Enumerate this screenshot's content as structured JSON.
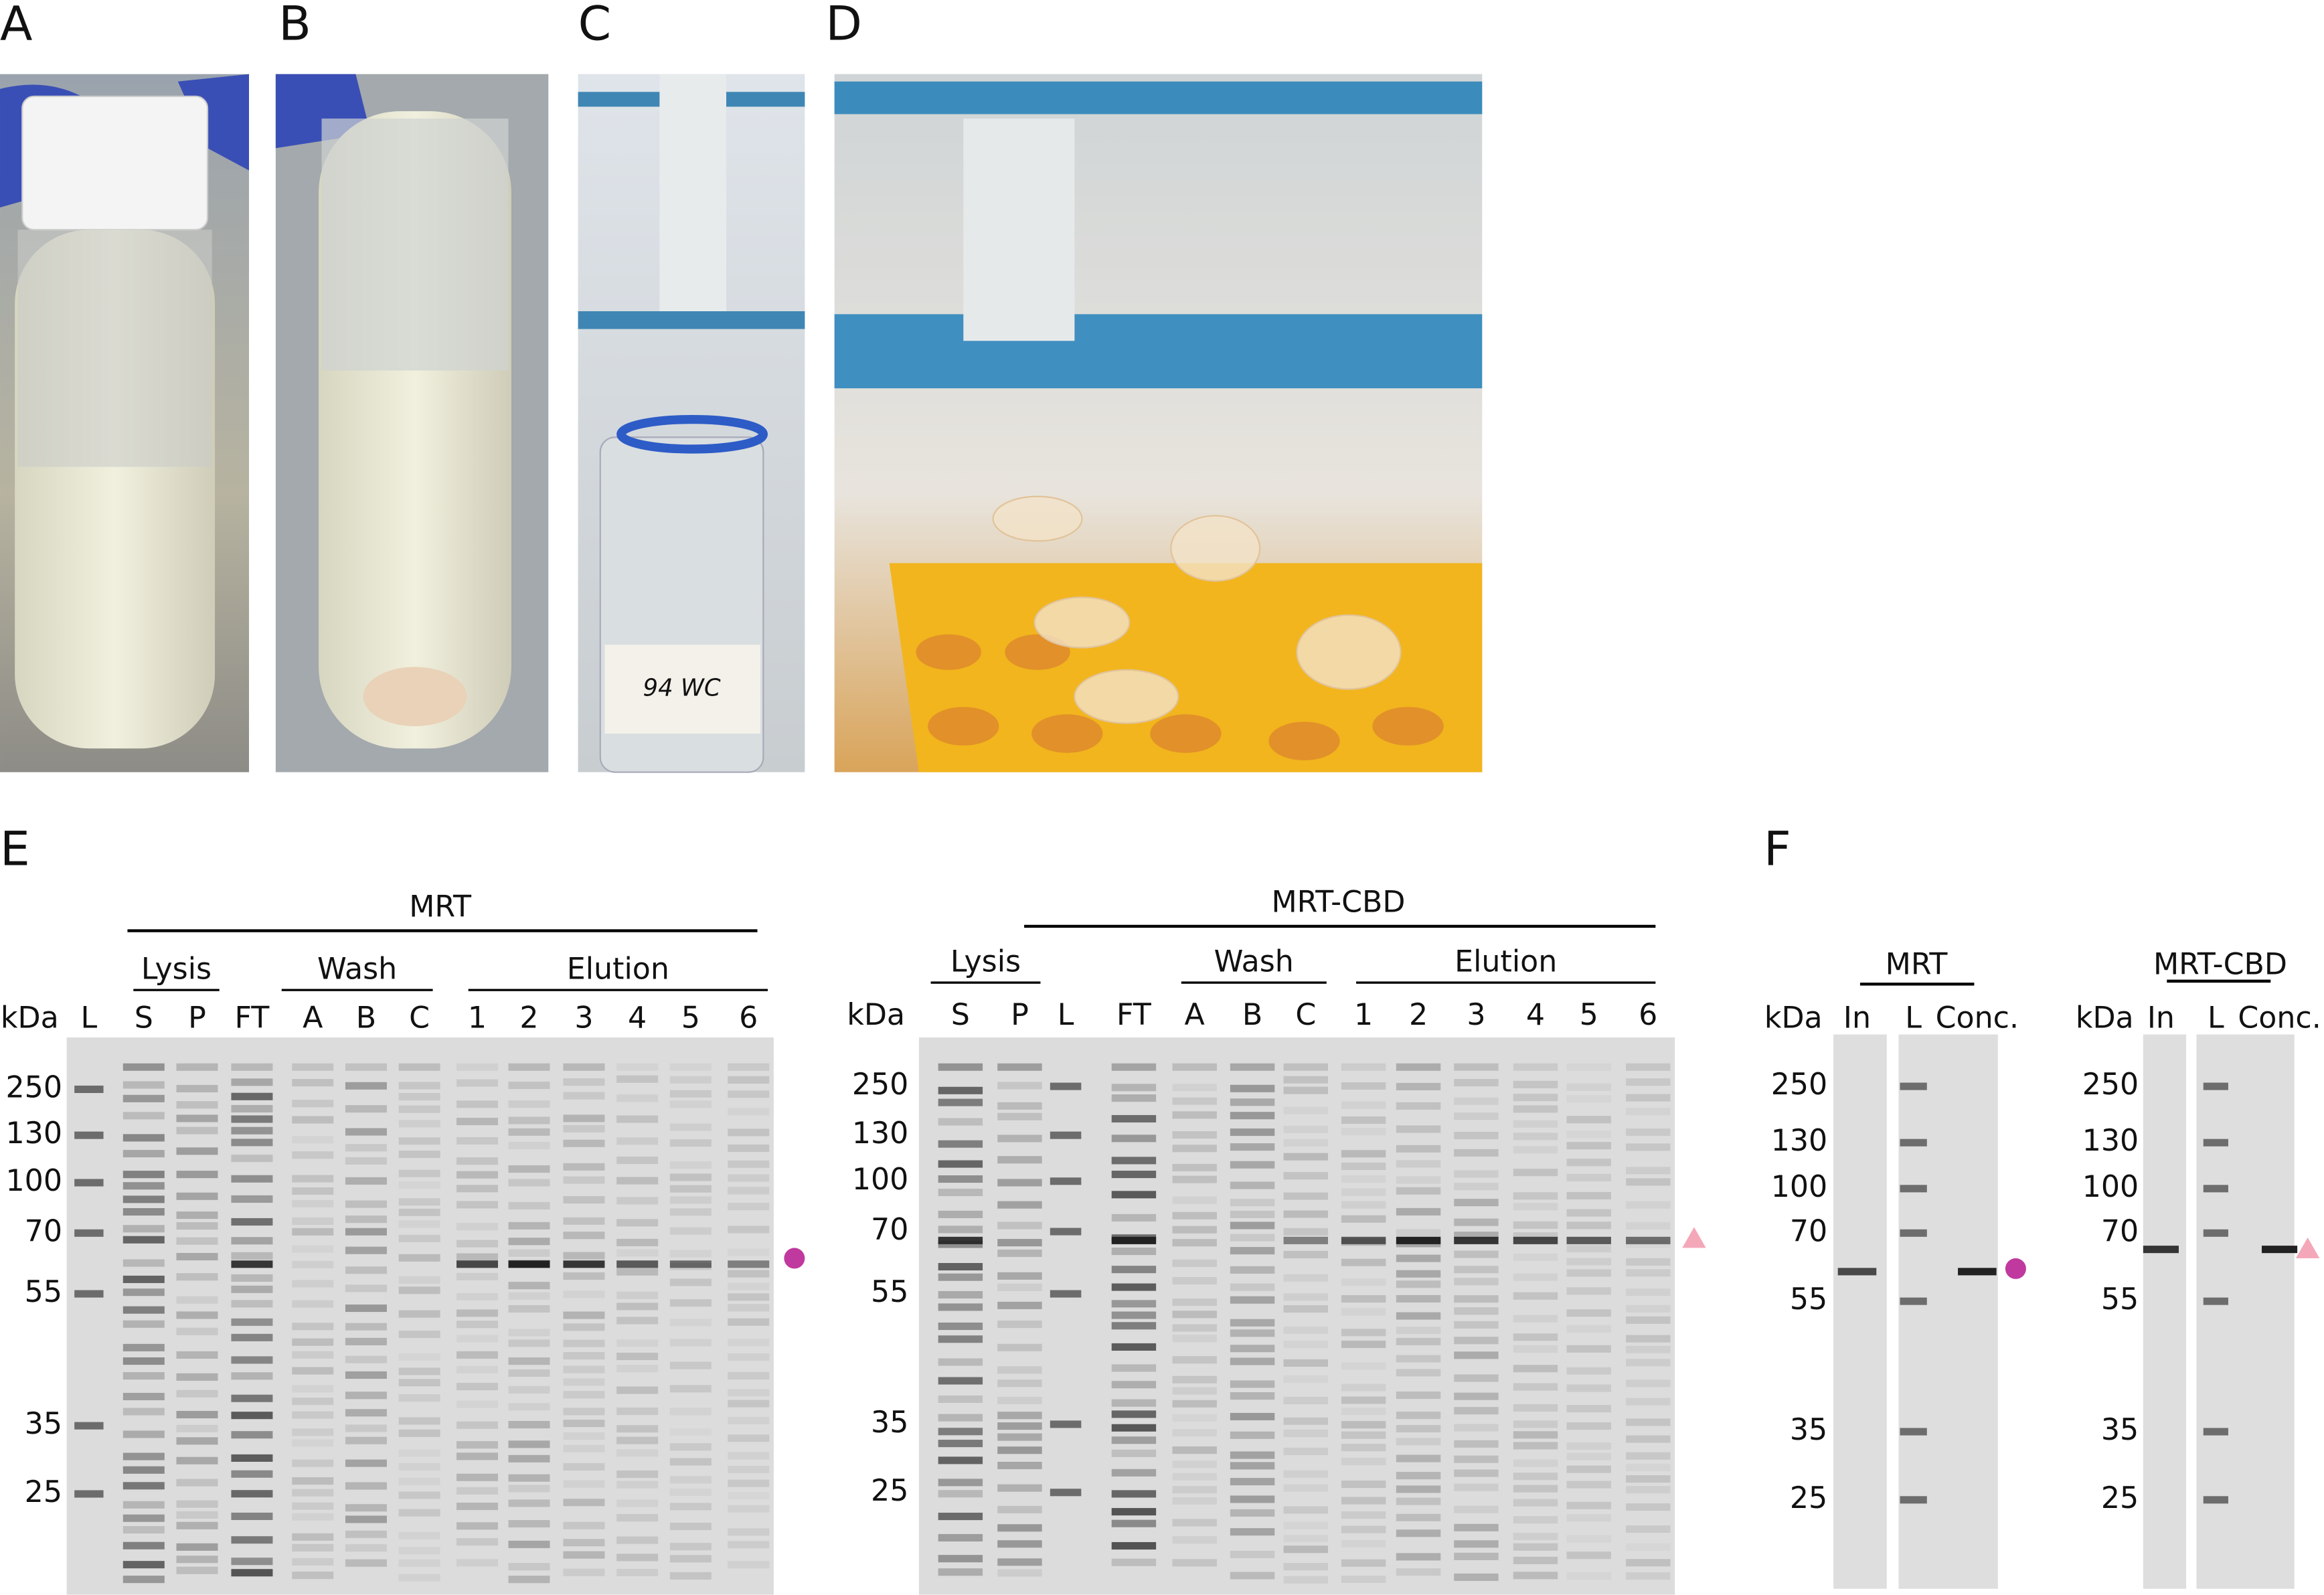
{
  "panel_labels": [
    "A",
    "B",
    "C",
    "D",
    "E",
    "F"
  ],
  "photo_text": "94 WC",
  "gel_E_MRT": {
    "title": "MRT",
    "groups": [
      "Lysis",
      "Wash",
      "Elution"
    ],
    "unit": "kDa",
    "lanes": [
      "L",
      "S",
      "P",
      "FT",
      "A",
      "B",
      "C",
      "1",
      "2",
      "3",
      "4",
      "5",
      "6"
    ],
    "markers": [
      "250",
      "130",
      "100",
      "70",
      "55",
      "35",
      "25"
    ]
  },
  "gel_E_MRT_CBD": {
    "title": "MRT-CBD",
    "groups": [
      "Lysis",
      "Wash",
      "Elution"
    ],
    "unit": "kDa",
    "lanes": [
      "S",
      "P",
      "L",
      "FT",
      "A",
      "B",
      "C",
      "1",
      "2",
      "3",
      "4",
      "5",
      "6"
    ],
    "markers": [
      "250",
      "130",
      "100",
      "70",
      "55",
      "35",
      "25"
    ]
  },
  "gel_F_MRT": {
    "title": "MRT",
    "unit": "kDa",
    "lanes": [
      "In",
      "L",
      "Conc."
    ],
    "markers": [
      "250",
      "130",
      "100",
      "70",
      "55",
      "35",
      "25"
    ]
  },
  "gel_F_MRT_CBD": {
    "title": "MRT-CBD",
    "unit": "kDa",
    "lanes": [
      "In",
      "L",
      "Conc."
    ],
    "markers": [
      "250",
      "130",
      "100",
      "70",
      "55",
      "35",
      "25"
    ]
  }
}
